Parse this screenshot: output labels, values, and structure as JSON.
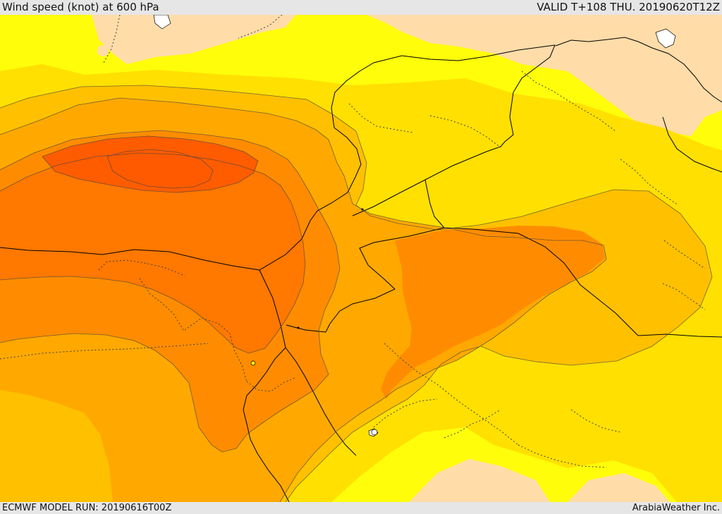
{
  "header": {
    "title": "Wind speed (knot) at 600 hPa",
    "valid": "VALID T+108 THU. 20190620T12Z"
  },
  "footer": {
    "model_run": "ECMWF MODEL RUN: 20190616T00Z",
    "credit": "ArabiaWeather Inc."
  },
  "map": {
    "colors": {
      "land_low": "#ffdca8",
      "very_low": "#fffd0a",
      "low": "#ffe000",
      "mid_low": "#ffc000",
      "mid": "#ffa800",
      "mid_high": "#ff8c00",
      "high": "#ff7800",
      "very_high": "#ff5c00",
      "border": "#000000",
      "contour": "#444444"
    }
  }
}
